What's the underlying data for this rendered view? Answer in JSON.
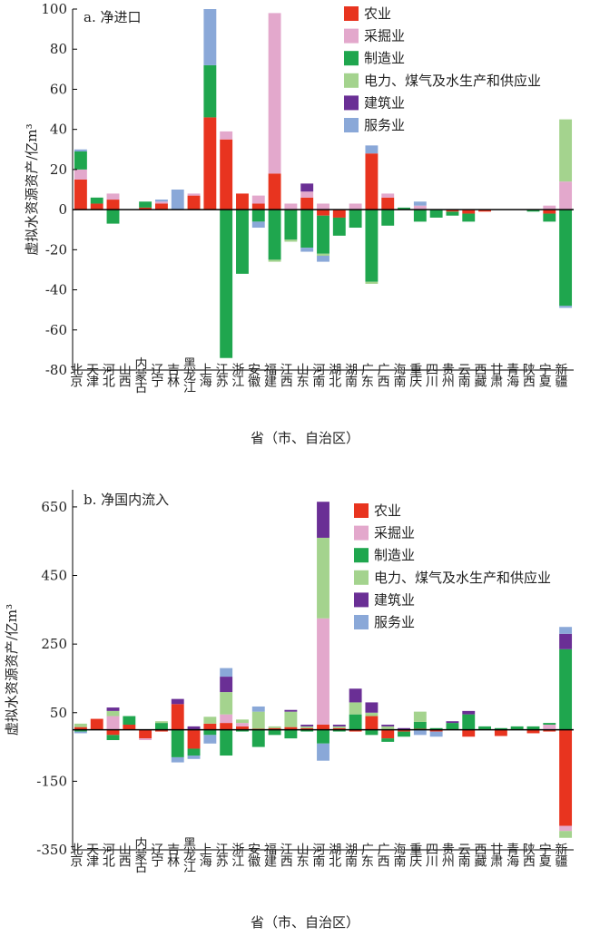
{
  "colors": {
    "农业": "#e8341f",
    "采掘业": "#e3a8cc",
    "制造业": "#1fa64e",
    "电力、煤气及水生产和供应业": "#a4d38e",
    "建筑业": "#6a2f95",
    "服务业": "#8aa8d8"
  },
  "chart_data": [
    {
      "type": "bar",
      "stacked": true,
      "title": "a. 净进口",
      "xlabel": "省（市、自治区）",
      "ylabel": "虚拟水资源资产/亿m³",
      "ylim": [
        -80,
        100
      ],
      "yticks": [
        -80,
        -60,
        -40,
        -20,
        0,
        20,
        40,
        60,
        80,
        100
      ],
      "categories": [
        "北京",
        "天津",
        "河北",
        "山西",
        "内蒙古",
        "辽宁",
        "吉林",
        "黑龙江",
        "上海",
        "江苏",
        "浙江",
        "安徽",
        "福建",
        "江西",
        "山东",
        "河南",
        "湖北",
        "湖南",
        "广东",
        "广西",
        "海南",
        "重庆",
        "四川",
        "贵州",
        "云南",
        "西藏",
        "甘肃",
        "青海",
        "陕西",
        "宁夏",
        "新疆"
      ],
      "legend": [
        "农业",
        "采掘业",
        "制造业",
        "电力、煤气及水生产和供应业",
        "建筑业",
        "服务业"
      ],
      "legend_position": "top-right",
      "series": [
        {
          "name": "农业",
          "values": [
            15,
            3,
            5,
            0,
            1,
            3,
            0,
            7,
            46,
            35,
            8,
            3,
            18,
            0,
            6,
            -3,
            -4,
            0,
            28,
            6,
            0,
            0,
            0,
            -1,
            -2,
            -1,
            0,
            0,
            0,
            -2,
            0
          ]
        },
        {
          "name": "采掘业",
          "values": [
            5,
            0,
            3,
            0,
            0,
            1,
            0,
            1,
            0,
            4,
            0,
            4,
            80,
            3,
            3,
            3,
            0,
            3,
            0,
            2,
            0,
            2,
            0,
            0,
            0,
            0,
            0,
            0,
            0,
            2,
            14
          ]
        },
        {
          "name": "制造业",
          "values": [
            9,
            3,
            -7,
            0,
            3,
            0,
            0,
            0,
            26,
            -74,
            -32,
            -6,
            -25,
            -15,
            -19,
            -19,
            -9,
            -9,
            -36,
            -8,
            1,
            -6,
            -4,
            -2,
            -4,
            0,
            0,
            0,
            -1,
            -4,
            -48
          ]
        },
        {
          "name": "电力、煤气及水生产和供应业",
          "values": [
            0,
            0,
            0,
            0,
            0,
            0,
            0,
            0,
            0,
            0,
            0,
            0,
            -1,
            -1,
            0,
            -1,
            0,
            0,
            -1,
            0,
            0,
            0,
            0,
            0,
            0,
            0,
            0,
            0,
            0,
            0,
            31
          ]
        },
        {
          "name": "建筑业",
          "values": [
            0,
            0,
            0,
            0,
            0,
            0,
            0,
            0,
            0,
            0,
            0,
            0,
            0,
            0,
            4,
            0,
            0,
            0,
            0,
            0,
            0,
            0,
            0,
            0,
            0,
            0,
            0,
            0,
            0,
            0,
            0
          ]
        },
        {
          "name": "服务业",
          "values": [
            1,
            0,
            0,
            0,
            0,
            1,
            10,
            0,
            28,
            0,
            0,
            -3,
            0,
            0,
            -2,
            -3,
            0,
            0,
            4,
            0,
            0,
            2,
            0,
            0,
            0,
            0,
            0,
            0,
            0,
            0,
            -1
          ]
        }
      ]
    },
    {
      "type": "bar",
      "stacked": true,
      "title": "b. 净国内流入",
      "xlabel": "省（市、自治区）",
      "ylabel": "虚拟水资源资产/亿m³",
      "ylim": [
        -350,
        700
      ],
      "yticks": [
        -350,
        -150,
        50,
        250,
        450,
        650
      ],
      "categories": [
        "北京",
        "天津",
        "河北",
        "山西",
        "内蒙古",
        "辽宁",
        "吉林",
        "黑龙江",
        "上海",
        "江苏",
        "浙江",
        "安徽",
        "福建",
        "江西",
        "山东",
        "河南",
        "湖北",
        "湖南",
        "广东",
        "广西",
        "海南",
        "重庆",
        "四川",
        "贵州",
        "云南",
        "西藏",
        "甘肃",
        "青海",
        "陕西",
        "宁夏",
        "新疆"
      ],
      "legend": [
        "农业",
        "采掘业",
        "制造业",
        "电力、煤气及水生产和供应业",
        "建筑业",
        "服务业"
      ],
      "legend_position": "top-right",
      "series": [
        {
          "name": "农业",
          "values": [
            8,
            32,
            -15,
            15,
            -25,
            -5,
            75,
            -55,
            18,
            20,
            10,
            3,
            5,
            8,
            5,
            15,
            5,
            -5,
            40,
            -25,
            -5,
            3,
            -5,
            0,
            -20,
            0,
            -18,
            0,
            -10,
            -5,
            -280
          ]
        },
        {
          "name": "采掘业",
          "values": [
            0,
            0,
            40,
            0,
            -5,
            0,
            0,
            0,
            0,
            25,
            10,
            0,
            0,
            0,
            0,
            310,
            0,
            0,
            0,
            0,
            0,
            0,
            0,
            0,
            0,
            0,
            0,
            0,
            0,
            15,
            -15
          ]
        },
        {
          "name": "制造业",
          "values": [
            -5,
            0,
            -15,
            25,
            0,
            20,
            -80,
            -20,
            -15,
            -75,
            -5,
            -50,
            -15,
            -25,
            -5,
            -40,
            -5,
            45,
            -15,
            -10,
            -15,
            20,
            5,
            20,
            45,
            10,
            5,
            10,
            10,
            5,
            235
          ]
        },
        {
          "name": "电力、煤气及水生产和供应业",
          "values": [
            10,
            0,
            15,
            0,
            0,
            5,
            0,
            0,
            20,
            65,
            10,
            50,
            5,
            45,
            5,
            235,
            5,
            35,
            10,
            10,
            0,
            30,
            0,
            0,
            0,
            0,
            0,
            0,
            0,
            0,
            -20
          ]
        },
        {
          "name": "建筑业",
          "values": [
            0,
            0,
            10,
            0,
            0,
            0,
            15,
            10,
            0,
            45,
            0,
            0,
            0,
            5,
            5,
            105,
            5,
            40,
            30,
            5,
            5,
            0,
            0,
            5,
            10,
            0,
            0,
            0,
            0,
            0,
            45
          ]
        },
        {
          "name": "服务业",
          "values": [
            -5,
            0,
            0,
            0,
            0,
            0,
            -15,
            -10,
            -25,
            25,
            0,
            15,
            0,
            0,
            0,
            -50,
            0,
            0,
            0,
            0,
            0,
            -15,
            -15,
            0,
            0,
            0,
            0,
            0,
            0,
            0,
            20
          ]
        }
      ]
    }
  ]
}
